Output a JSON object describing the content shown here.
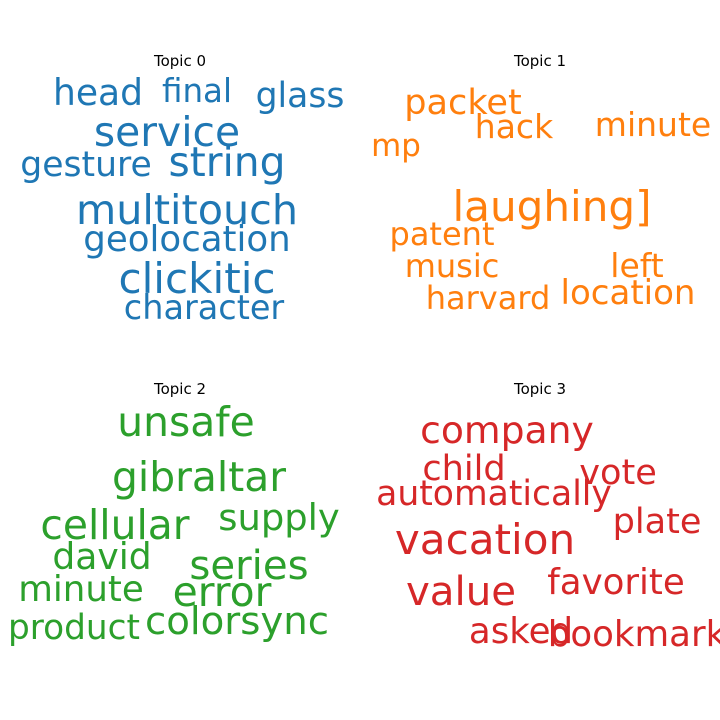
{
  "chart_data": [
    {
      "type": "wordcloud",
      "title": "Topic 0",
      "color": "#1f77b4",
      "words": [
        {
          "text": "head",
          "weight": 0.62
        },
        {
          "text": "final",
          "weight": 0.48
        },
        {
          "text": "glass",
          "weight": 0.56
        },
        {
          "text": "service",
          "weight": 0.8
        },
        {
          "text": "gesture",
          "weight": 0.56
        },
        {
          "text": "string",
          "weight": 0.8
        },
        {
          "text": "multitouch",
          "weight": 0.82
        },
        {
          "text": "geolocation",
          "weight": 0.6
        },
        {
          "text": "clickitic",
          "weight": 0.85
        },
        {
          "text": "character",
          "weight": 0.52
        }
      ]
    },
    {
      "type": "wordcloud",
      "title": "Topic 1",
      "color": "#ff7f0e",
      "words": [
        {
          "text": "packet",
          "weight": 0.58
        },
        {
          "text": "hack",
          "weight": 0.5
        },
        {
          "text": "minute",
          "weight": 0.5
        },
        {
          "text": "mp",
          "weight": 0.42
        },
        {
          "text": "laughing]",
          "weight": 0.85
        },
        {
          "text": "patent",
          "weight": 0.46
        },
        {
          "text": "music",
          "weight": 0.46
        },
        {
          "text": "left",
          "weight": 0.5
        },
        {
          "text": "harvard",
          "weight": 0.46
        },
        {
          "text": "location",
          "weight": 0.54
        }
      ]
    },
    {
      "type": "wordcloud",
      "title": "Topic 2",
      "color": "#2ca02c",
      "words": [
        {
          "text": "unsafe",
          "weight": 0.8
        },
        {
          "text": "gibraltar",
          "weight": 0.8
        },
        {
          "text": "cellular",
          "weight": 0.8
        },
        {
          "text": "supply",
          "weight": 0.65
        },
        {
          "text": "david",
          "weight": 0.62
        },
        {
          "text": "series",
          "weight": 0.78
        },
        {
          "text": "minute",
          "weight": 0.6
        },
        {
          "text": "error",
          "weight": 0.8
        },
        {
          "text": "product",
          "weight": 0.55
        },
        {
          "text": "colorsync",
          "weight": 0.72
        }
      ]
    },
    {
      "type": "wordcloud",
      "title": "Topic 3",
      "color": "#d62728",
      "words": [
        {
          "text": "company",
          "weight": 0.68
        },
        {
          "text": "child",
          "weight": 0.58
        },
        {
          "text": "vote",
          "weight": 0.58
        },
        {
          "text": "automatically",
          "weight": 0.56
        },
        {
          "text": "plate",
          "weight": 0.58
        },
        {
          "text": "vacation",
          "weight": 0.85
        },
        {
          "text": "favorite",
          "weight": 0.6
        },
        {
          "text": "value",
          "weight": 0.78
        },
        {
          "text": "asked",
          "weight": 0.6
        },
        {
          "text": "bookmark",
          "weight": 0.6
        }
      ]
    }
  ]
}
